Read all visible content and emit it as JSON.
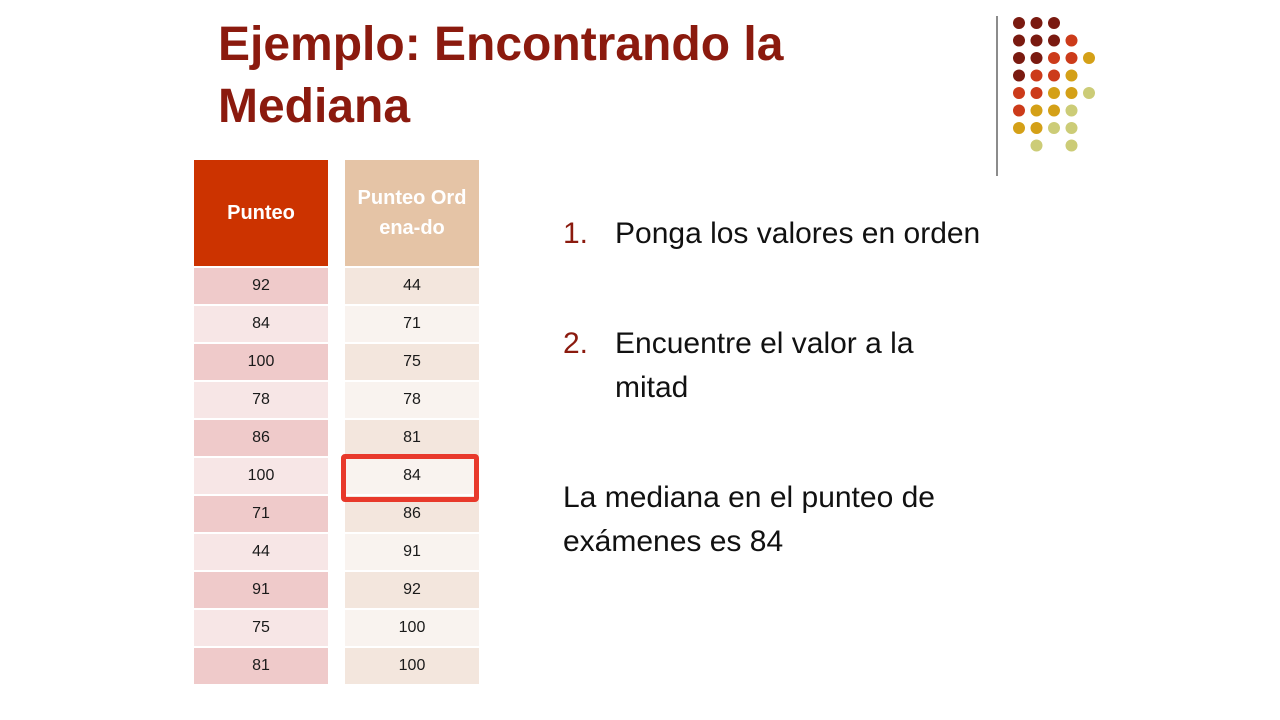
{
  "title": "Ejemplo: Encontrando la Mediana",
  "table_scores": {
    "header": "Punteo",
    "values": [
      "92",
      "84",
      "100",
      "78",
      "86",
      "100",
      "71",
      "44",
      "91",
      "75",
      "81"
    ]
  },
  "table_sorted": {
    "header": "Punteo Ordena-do",
    "values": [
      "44",
      "71",
      "75",
      "78",
      "81",
      "84",
      "86",
      "91",
      "92",
      "100",
      "100"
    ]
  },
  "steps": [
    {
      "number": "1.",
      "text": "Ponga los valores en orden"
    },
    {
      "number": "2.",
      "text": "Encuentre el valor a la mitad"
    }
  ],
  "conclusion": "La mediana en el punteo de exámenes es 84",
  "colors": {
    "title": "#8b1a0e",
    "scores_header": "#cc3300",
    "sorted_header": "#e5c4a6",
    "highlight": "#e8392b"
  },
  "decoration": {
    "dot_grid": [
      [
        "#7a1a10",
        "#7a1a10",
        "#7a1a10",
        "",
        "",
        ""
      ],
      [
        "#7a1a10",
        "#7a1a10",
        "#7a1a10",
        "#cc3b1a",
        "",
        ""
      ],
      [
        "#7a1a10",
        "#7a1a10",
        "#cc3b1a",
        "#cc3b1a",
        "#d4a017",
        ""
      ],
      [
        "#7a1a10",
        "#cc3b1a",
        "#cc3b1a",
        "#d4a017",
        "",
        ""
      ],
      [
        "#cc3b1a",
        "#cc3b1a",
        "#d4a017",
        "#d4a017",
        "#cccc77",
        ""
      ],
      [
        "#cc3b1a",
        "#d4a017",
        "#d4a017",
        "#cccc77",
        "",
        ""
      ],
      [
        "#d4a017",
        "#d4a017",
        "#cccc77",
        "#cccc77",
        "",
        ""
      ],
      [
        "",
        "#cccc77",
        "",
        "#cccc77",
        "",
        ""
      ]
    ]
  }
}
